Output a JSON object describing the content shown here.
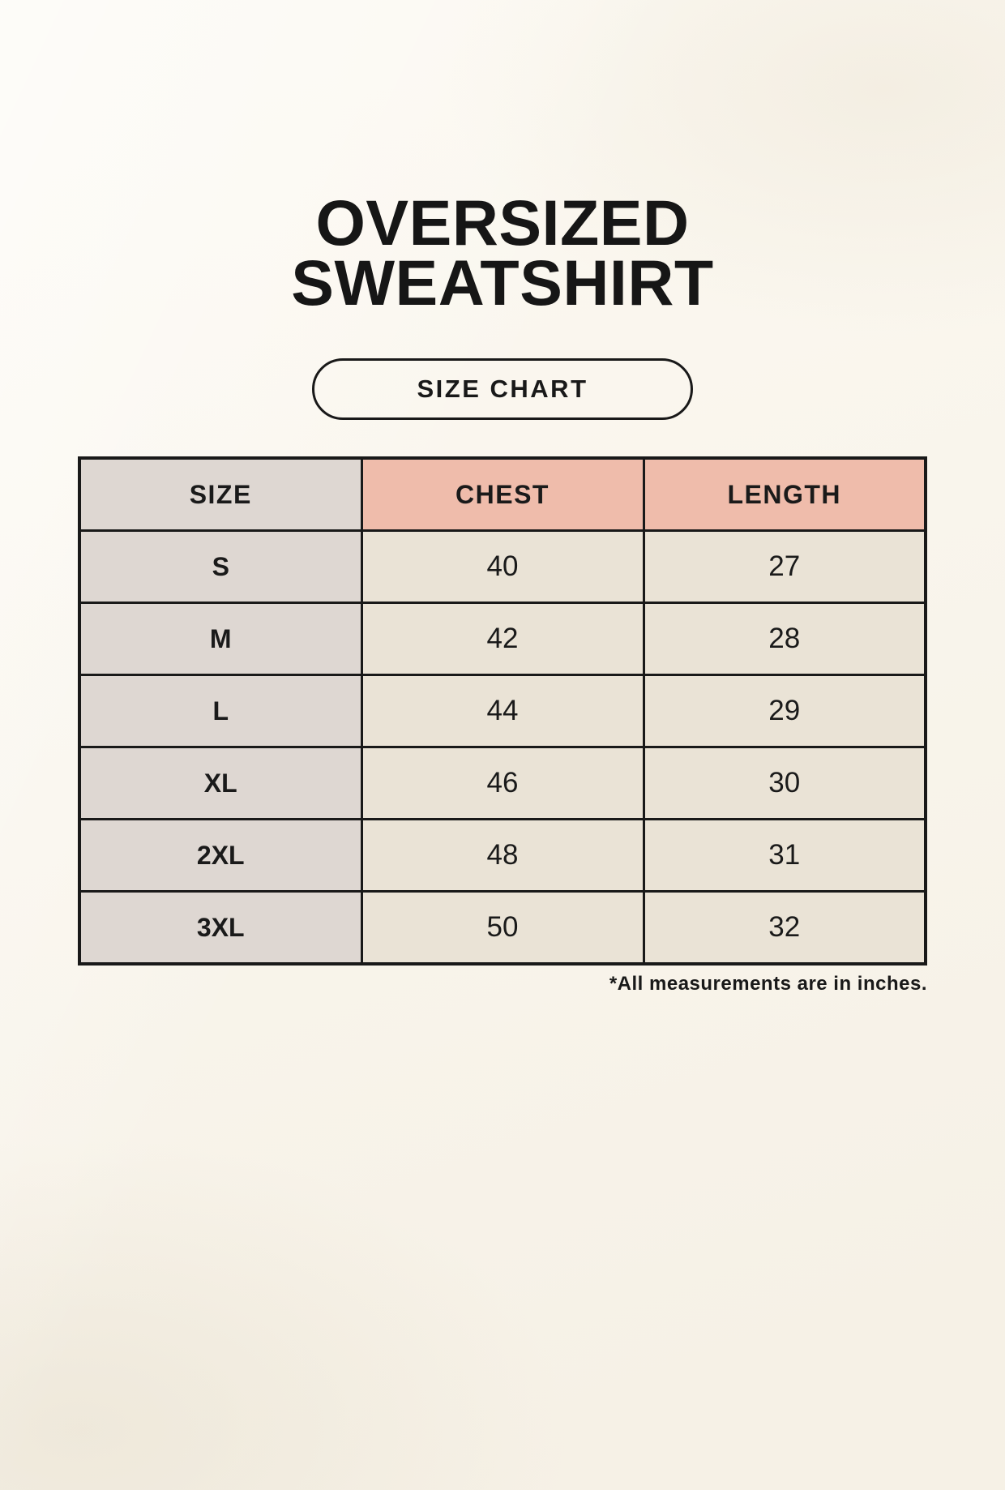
{
  "header": {
    "title_line1": "OVERSIZED",
    "title_line2": "SWEATSHIRT",
    "badge_label": "SIZE CHART"
  },
  "chart_data": {
    "type": "table",
    "title": "OVERSIZED SWEATSHIRT SIZE CHART",
    "columns": [
      "SIZE",
      "CHEST",
      "LENGTH"
    ],
    "rows": [
      [
        "S",
        "40",
        "27"
      ],
      [
        "M",
        "42",
        "28"
      ],
      [
        "L",
        "44",
        "29"
      ],
      [
        "XL",
        "46",
        "30"
      ],
      [
        "2XL",
        "48",
        "31"
      ],
      [
        "3XL",
        "50",
        "32"
      ]
    ],
    "footnote": "*All measurements are in inches."
  },
  "colors": {
    "background": "#f9f5ec",
    "header_accent": "#efbcab",
    "size_column": "#ded7d2",
    "data_cell": "#eae3d6",
    "border": "#191919",
    "text": "#1a1a1a"
  }
}
